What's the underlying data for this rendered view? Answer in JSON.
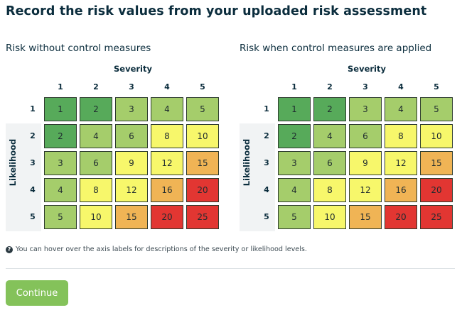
{
  "page": {
    "title": "Record the risk values from your uploaded risk assessment",
    "info_text": "You can hover over the axis labels for descriptions of the severity or likelihood levels.",
    "info_icon": "question-circle-icon",
    "continue_label": "Continue",
    "colors": {
      "text": "#0b2d3d",
      "button": "#84c25a",
      "level_1": "#57aa5a",
      "level_2": "#a5cd6b",
      "level_3": "#f7f76b",
      "level_4": "#f0b455",
      "level_5": "#e23632"
    }
  },
  "matrices": [
    {
      "heading": "Risk without control measures",
      "severity_label": "Severity",
      "likelihood_label": "Likelihood",
      "severity_levels": [
        "1",
        "2",
        "3",
        "4",
        "5"
      ],
      "likelihood_levels": [
        "1",
        "2",
        "3",
        "4",
        "5"
      ],
      "values": [
        [
          "1",
          "2",
          "3",
          "4",
          "5"
        ],
        [
          "2",
          "4",
          "6",
          "8",
          "10"
        ],
        [
          "3",
          "6",
          "9",
          "12",
          "15"
        ],
        [
          "4",
          "8",
          "12",
          "16",
          "20"
        ],
        [
          "5",
          "10",
          "15",
          "20",
          "25"
        ]
      ],
      "color_levels": [
        [
          1,
          1,
          2,
          2,
          2
        ],
        [
          1,
          2,
          2,
          3,
          3
        ],
        [
          2,
          2,
          3,
          3,
          4
        ],
        [
          2,
          3,
          3,
          4,
          5
        ],
        [
          2,
          3,
          4,
          5,
          5
        ]
      ]
    },
    {
      "heading": "Risk when control measures are applied",
      "severity_label": "Severity",
      "likelihood_label": "Likelihood",
      "severity_levels": [
        "1",
        "2",
        "3",
        "4",
        "5"
      ],
      "likelihood_levels": [
        "1",
        "2",
        "3",
        "4",
        "5"
      ],
      "values": [
        [
          "1",
          "2",
          "3",
          "4",
          "5"
        ],
        [
          "2",
          "4",
          "6",
          "8",
          "10"
        ],
        [
          "3",
          "6",
          "9",
          "12",
          "15"
        ],
        [
          "4",
          "8",
          "12",
          "16",
          "20"
        ],
        [
          "5",
          "10",
          "15",
          "20",
          "25"
        ]
      ],
      "color_levels": [
        [
          1,
          1,
          2,
          2,
          2
        ],
        [
          1,
          2,
          2,
          3,
          3
        ],
        [
          2,
          2,
          3,
          3,
          4
        ],
        [
          2,
          3,
          3,
          4,
          5
        ],
        [
          2,
          3,
          4,
          5,
          5
        ]
      ]
    }
  ]
}
